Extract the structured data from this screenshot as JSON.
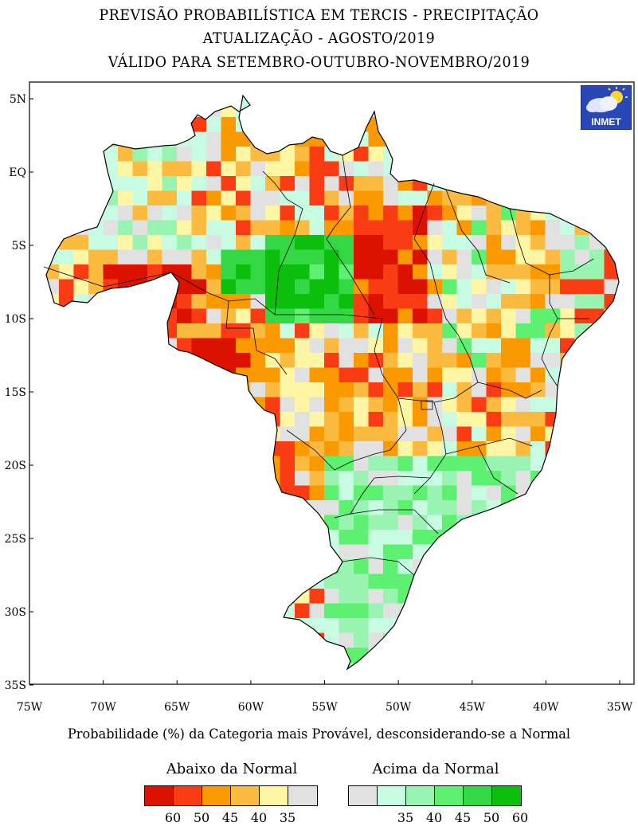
{
  "title": {
    "line1": "PREVISÃO PROBABILÍSTICA EM TERCIS - PRECIPITAÇÃO",
    "line2": "ATUALIZAÇÃO - AGOSTO/2019",
    "line3": "VÁLIDO PARA SETEMBRO-OUTUBRO-NOVEMBRO/2019"
  },
  "logo": {
    "text": "INMET",
    "icon": "cloud-sun-icon"
  },
  "axes": {
    "lat_labels": [
      "5N",
      "EQ",
      "5S",
      "10S",
      "15S",
      "20S",
      "25S",
      "30S",
      "35S"
    ],
    "lon_labels": [
      "75W",
      "70W",
      "65W",
      "60W",
      "55W",
      "50W",
      "45W",
      "40W",
      "35W"
    ],
    "lat_range": [
      -35,
      5
    ],
    "lon_range": [
      -75,
      -35
    ]
  },
  "note": "Probabilidade (%) da Categoria mais Provável, desconsiderando-se a Normal",
  "legend": {
    "below": {
      "title": "Abaixo da Normal",
      "colors": [
        "#dd1100",
        "#fa3c14",
        "#fa9a00",
        "#fbbb40",
        "#fef6a4",
        "#e1e1e1"
      ],
      "labels": [
        "60",
        "50",
        "45",
        "40",
        "35",
        ""
      ]
    },
    "above": {
      "title": "Acima da Normal",
      "colors": [
        "#e1e1e1",
        "#c7fce2",
        "#98f4b0",
        "#5ef070",
        "#34d844",
        "#0cbf0c"
      ],
      "labels": [
        "",
        "35",
        "40",
        "45",
        "50",
        "60"
      ]
    }
  }
}
